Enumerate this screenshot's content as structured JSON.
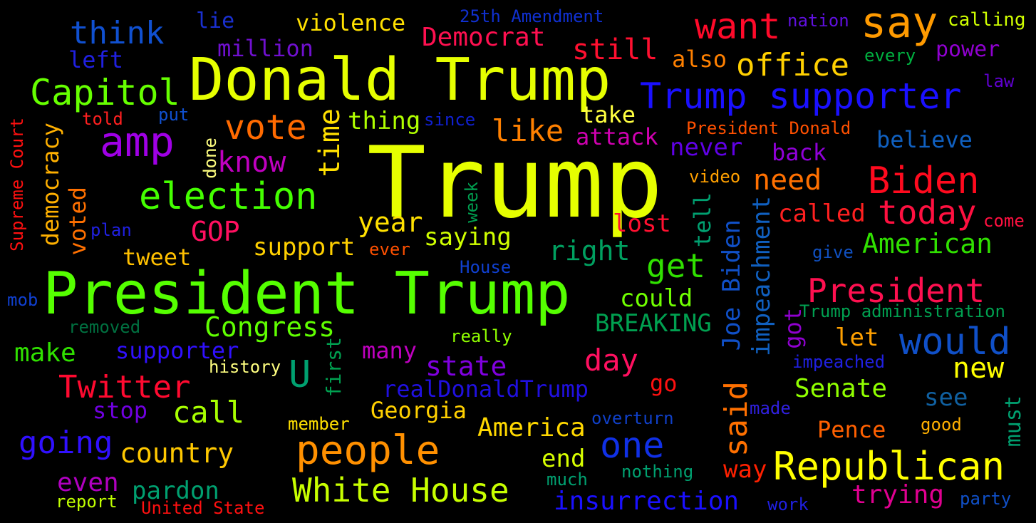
{
  "words": [
    {
      "text": "Trump",
      "color": "#e6ff00"
    },
    {
      "text": "Donald Trump",
      "color": "#e6ff00"
    },
    {
      "text": "President Trump",
      "color": "#55ff00"
    },
    {
      "text": "Trump supporter",
      "color": "#1a10ff"
    },
    {
      "text": "Republican",
      "color": "#ffff00"
    },
    {
      "text": "Biden",
      "color": "#ff0a1e"
    },
    {
      "text": "election",
      "color": "#44ff00"
    },
    {
      "text": "Capitol",
      "color": "#66ff00"
    },
    {
      "text": "amp",
      "color": "#a000e6"
    },
    {
      "text": "think",
      "color": "#1050d0"
    },
    {
      "text": "vote",
      "color": "#ff6a00"
    },
    {
      "text": "people",
      "color": "#ff9000"
    },
    {
      "text": "White House",
      "color": "#c8ff00"
    },
    {
      "text": "President",
      "color": "#ff1050"
    },
    {
      "text": "would",
      "color": "#1050c8"
    },
    {
      "text": "today",
      "color": "#ff1040"
    },
    {
      "text": "say",
      "color": "#ff9a00"
    },
    {
      "text": "want",
      "color": "#ff0a2a"
    },
    {
      "text": "office",
      "color": "#ffd000"
    },
    {
      "text": "one",
      "color": "#1030e6"
    },
    {
      "text": "Twitter",
      "color": "#ff0a30"
    },
    {
      "text": "going",
      "color": "#3010ff"
    },
    {
      "text": "country",
      "color": "#ffc800"
    },
    {
      "text": "America",
      "color": "#ffd800"
    },
    {
      "text": "Democrat",
      "color": "#ff1050"
    },
    {
      "text": "still",
      "color": "#ff1030"
    },
    {
      "text": "like",
      "color": "#ff8000"
    },
    {
      "text": "know",
      "color": "#c000c0"
    },
    {
      "text": "get",
      "color": "#30e000"
    },
    {
      "text": "right",
      "color": "#00a060"
    },
    {
      "text": "Congress",
      "color": "#60ff00"
    },
    {
      "text": "make",
      "color": "#30e000"
    },
    {
      "text": "call",
      "color": "#a8ff00"
    },
    {
      "text": "day",
      "color": "#ff1060"
    },
    {
      "text": "new",
      "color": "#ffff00"
    },
    {
      "text": "American",
      "color": "#30e000"
    },
    {
      "text": "Senate",
      "color": "#90ff00"
    },
    {
      "text": "insurrection",
      "color": "#1a10ff"
    },
    {
      "text": "trying",
      "color": "#e00090"
    },
    {
      "text": "state",
      "color": "#8000e0"
    },
    {
      "text": "GOP",
      "color": "#ff1060"
    },
    {
      "text": "U",
      "color": "#00a070"
    },
    {
      "text": "need",
      "color": "#ff7000"
    },
    {
      "text": "believe",
      "color": "#1060c0"
    },
    {
      "text": "called",
      "color": "#ff2020"
    },
    {
      "text": "never",
      "color": "#6000e6"
    },
    {
      "text": "back",
      "color": "#9000d8"
    },
    {
      "text": "attack",
      "color": "#d000b0"
    },
    {
      "text": "take",
      "color": "#ffff40"
    },
    {
      "text": "thing",
      "color": "#b0ff00"
    },
    {
      "text": "year",
      "color": "#ffe000"
    },
    {
      "text": "saying",
      "color": "#d0ff00"
    },
    {
      "text": "support",
      "color": "#ffd000"
    },
    {
      "text": "tweet",
      "color": "#ffc000"
    },
    {
      "text": "could",
      "color": "#70ff00"
    },
    {
      "text": "BREAKING",
      "color": "#00a050"
    },
    {
      "text": "supporter",
      "color": "#3010ff"
    },
    {
      "text": "many",
      "color": "#c000c0"
    },
    {
      "text": "realDonaldTrump",
      "color": "#2010e0"
    },
    {
      "text": "Georgia",
      "color": "#ffd000"
    },
    {
      "text": "stop",
      "color": "#7000e0"
    },
    {
      "text": "even",
      "color": "#b000c0"
    },
    {
      "text": "pardon",
      "color": "#00a070"
    },
    {
      "text": "end",
      "color": "#d8ff00"
    },
    {
      "text": "see",
      "color": "#1060a0"
    },
    {
      "text": "let",
      "color": "#ffa000"
    },
    {
      "text": "Pence",
      "color": "#ff6000"
    },
    {
      "text": "way",
      "color": "#ff2000"
    },
    {
      "text": "go",
      "color": "#ff1010"
    },
    {
      "text": "lost",
      "color": "#ff1030"
    },
    {
      "text": "violence",
      "color": "#ffe000"
    },
    {
      "text": "million",
      "color": "#7010d0"
    },
    {
      "text": "lie",
      "color": "#1a30d0"
    },
    {
      "text": "left",
      "color": "#2020e0"
    },
    {
      "text": "also",
      "color": "#ff8000"
    },
    {
      "text": "power",
      "color": "#9000d0"
    },
    {
      "text": "calling",
      "color": "#d0ff00"
    },
    {
      "text": "nation",
      "color": "#6010e0"
    },
    {
      "text": "every",
      "color": "#00b040"
    },
    {
      "text": "law",
      "color": "#6000d0"
    },
    {
      "text": "25th Amendment",
      "color": "#1030d0"
    },
    {
      "text": "President Donald",
      "color": "#ff5000"
    },
    {
      "text": "told",
      "color": "#ff2020"
    },
    {
      "text": "put",
      "color": "#1050d0"
    },
    {
      "text": "since",
      "color": "#1020d0"
    },
    {
      "text": "video",
      "color": "#ffa000"
    },
    {
      "text": "come",
      "color": "#ff1040"
    },
    {
      "text": "give",
      "color": "#1050c0"
    },
    {
      "text": "Trump administration",
      "color": "#00a050"
    },
    {
      "text": "impeached",
      "color": "#2020e0"
    },
    {
      "text": "plan",
      "color": "#2020e0"
    },
    {
      "text": "ever",
      "color": "#ff5000"
    },
    {
      "text": "House",
      "color": "#1040d0"
    },
    {
      "text": "mob",
      "color": "#1040d0"
    },
    {
      "text": "removed",
      "color": "#007040"
    },
    {
      "text": "really",
      "color": "#90ff00"
    },
    {
      "text": "history",
      "color": "#ffff80"
    },
    {
      "text": "made",
      "color": "#3020e0"
    },
    {
      "text": "overturn",
      "color": "#1040c8"
    },
    {
      "text": "good",
      "color": "#ffb000"
    },
    {
      "text": "member",
      "color": "#ffe000"
    },
    {
      "text": "much",
      "color": "#00a070"
    },
    {
      "text": "nothing",
      "color": "#00a070"
    },
    {
      "text": "work",
      "color": "#2020e0"
    },
    {
      "text": "party",
      "color": "#1050c8"
    },
    {
      "text": "report",
      "color": "#c0ff00"
    },
    {
      "text": "United State",
      "color": "#ff1010"
    },
    {
      "text": "Joe Biden",
      "color": "#1050c8"
    },
    {
      "text": "said",
      "color": "#ff7000"
    },
    {
      "text": "impeachment",
      "color": "#1060c0"
    },
    {
      "text": "time",
      "color": "#ffe000"
    },
    {
      "text": "democracy",
      "color": "#ffb000"
    },
    {
      "text": "voted",
      "color": "#ff7000"
    },
    {
      "text": "Supreme Court",
      "color": "#ff1010"
    },
    {
      "text": "tell",
      "color": "#00a070"
    },
    {
      "text": "got",
      "color": "#9000d0"
    },
    {
      "text": "must",
      "color": "#00a070"
    },
    {
      "text": "done",
      "color": "#ffff80"
    },
    {
      "text": "week",
      "color": "#00a050"
    },
    {
      "text": "first",
      "color": "#00a050"
    }
  ]
}
